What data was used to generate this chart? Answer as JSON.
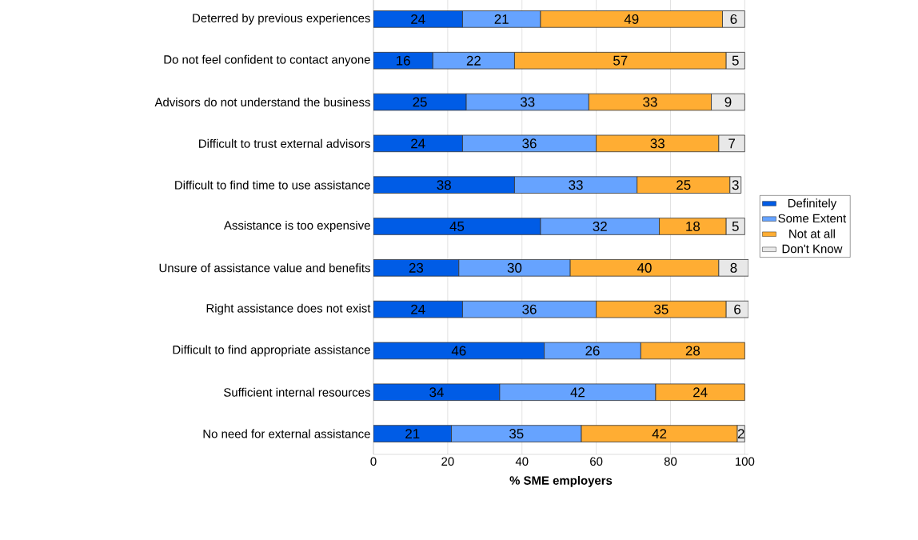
{
  "chart_data": {
    "type": "bar",
    "orientation": "horizontal",
    "stacked": true,
    "xlabel": "% SME employers",
    "categories": [
      "Deterred by previous experiences",
      "Do not feel confident to contact anyone",
      "Advisors do not understand the business",
      "Difficult to trust external advisors",
      "Difficult to find time to use assistance",
      "Assistance is too expensive",
      "Unsure of assistance value and benefits",
      "Right assistance does not exist",
      "Difficult to find appropriate assistance",
      "Sufficient internal resources",
      "No need for external assistance"
    ],
    "series": [
      {
        "name": "Definitely",
        "color": "#005ce6",
        "values": [
          24,
          16,
          25,
          24,
          38,
          45,
          23,
          24,
          46,
          34,
          21
        ]
      },
      {
        "name": "Some Extent",
        "color": "#66a3ff",
        "values": [
          21,
          22,
          33,
          36,
          33,
          32,
          30,
          36,
          26,
          42,
          35
        ]
      },
      {
        "name": "Not at all",
        "color": "#ffad33",
        "values": [
          49,
          57,
          33,
          33,
          25,
          18,
          40,
          35,
          28,
          24,
          42
        ]
      },
      {
        "name": "Don't Know",
        "color": "#e8e8e8",
        "values": [
          6,
          5,
          9,
          7,
          3,
          5,
          8,
          6,
          null,
          null,
          2
        ]
      }
    ],
    "xlim": [
      0,
      101
    ],
    "xticks": [
      0,
      20,
      40,
      60,
      80,
      100
    ],
    "grid": "x",
    "legend": "right",
    "data_labels": true
  }
}
